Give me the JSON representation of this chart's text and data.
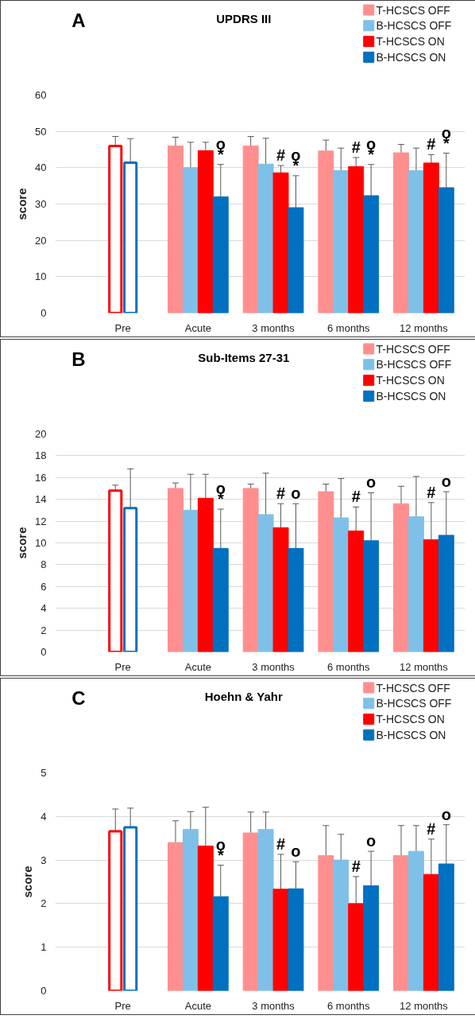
{
  "chart_data": [
    {
      "type": "bar",
      "title": "UPDRS III",
      "ylabel": "score",
      "categories": [
        "Pre",
        "Acute",
        "3 months",
        "6 months",
        "12 months"
      ],
      "ylim": [
        0,
        60
      ],
      "yticks": [
        0,
        10,
        20,
        30,
        40,
        50,
        60
      ],
      "grid": "y",
      "legend": "top right",
      "series": [
        {
          "color": "#ff0000",
          "values": [
            46.0,
            null,
            null,
            null,
            null
          ],
          "errors": [
            [
              46.0,
              48.6
            ],
            null,
            null,
            null,
            null
          ]
        },
        {
          "color": "#0070c0",
          "values": [
            41.4,
            null,
            null,
            null,
            null
          ],
          "errors": [
            [
              41.4,
              48.0
            ],
            null,
            null,
            null,
            null
          ]
        },
        {
          "name": "T-HCSCS OFF",
          "color": "#ff8f8f",
          "values": [
            null,
            46.0,
            46.0,
            44.6,
            44.1
          ],
          "errors": [
            null,
            [
              46.0,
              48.4
            ],
            [
              46.0,
              48.6
            ],
            [
              44.6,
              47.6
            ],
            [
              44.1,
              46.4
            ]
          ]
        },
        {
          "name": "B-HCSCS OFF",
          "color": "#7fc0e8",
          "values": [
            null,
            40.0,
            41.0,
            39.2,
            39.2
          ],
          "errors": [
            null,
            [
              40.0,
              47.0
            ],
            [
              41.0,
              48.1
            ],
            [
              39.2,
              45.4
            ],
            [
              39.2,
              45.4
            ]
          ]
        },
        {
          "name": "T-HCSCS ON",
          "color": "#ff0000",
          "values": [
            null,
            44.7,
            38.6,
            40.3,
            41.3
          ],
          "errors": [
            null,
            [
              44.7,
              47.0
            ],
            [
              38.6,
              40.6
            ],
            [
              40.3,
              42.8
            ],
            [
              41.3,
              43.6
            ]
          ]
        },
        {
          "name": "B-HCSCS ON",
          "color": "#0070c0",
          "values": [
            null,
            32.0,
            29.0,
            32.3,
            34.5
          ],
          "errors": [
            null,
            [
              32.0,
              40.9
            ],
            [
              29.0,
              37.8
            ],
            [
              32.3,
              40.9
            ],
            [
              34.5,
              44.0
            ]
          ]
        }
      ],
      "annotations": [
        "A",
        {
          "text": "*",
          "x": "Acute",
          "y": 32.0
        },
        {
          "text": "#",
          "x": "3 months",
          "y": 38.6
        },
        {
          "text": "*",
          "x": "3 months",
          "y": 29.0
        },
        {
          "text": "#",
          "x": "6 months",
          "y": 40.3
        },
        {
          "text": "*",
          "x": "6 months",
          "y": 32.3
        },
        {
          "text": "#",
          "x": "12 months",
          "y": 41.3
        },
        {
          "text": "*",
          "x": "12 months",
          "y": 34.5
        },
        "o",
        "o",
        "o",
        "o"
      ]
    },
    {
      "type": "bar",
      "title": "Sub-Items 27-31",
      "ylabel": "score",
      "categories": [
        "Pre",
        "Acute",
        "3 months",
        "6 months",
        "12 months"
      ],
      "ylim": [
        0,
        20
      ],
      "yticks": [
        0,
        2,
        4,
        6,
        8,
        10,
        12,
        14,
        16,
        18,
        20
      ],
      "grid": "y",
      "legend": "top right",
      "series": [
        {
          "color": "#ff0000",
          "values": [
            14.8,
            null,
            null,
            null,
            null
          ],
          "errors": [
            [
              14.8,
              15.3
            ],
            null,
            null,
            null,
            null
          ]
        },
        {
          "color": "#0070c0",
          "values": [
            13.2,
            null,
            null,
            null,
            null
          ],
          "errors": [
            [
              13.2,
              16.8
            ],
            null,
            null,
            null,
            null
          ]
        },
        {
          "name": "T-HCSCS OFF",
          "color": "#ff8f8f",
          "values": [
            null,
            15.0,
            15.0,
            14.7,
            13.6
          ],
          "errors": [
            null,
            [
              15.0,
              15.5
            ],
            [
              15.0,
              15.4
            ],
            [
              14.7,
              15.4
            ],
            [
              13.6,
              15.2
            ]
          ]
        },
        {
          "name": "B-HCSCS OFF",
          "color": "#7fc0e8",
          "values": [
            null,
            13.0,
            12.6,
            12.3,
            12.4
          ],
          "errors": [
            null,
            [
              13.0,
              16.3
            ],
            [
              12.6,
              16.4
            ],
            [
              12.3,
              15.9
            ],
            [
              12.4,
              16.1
            ]
          ]
        },
        {
          "name": "T-HCSCS ON",
          "color": "#ff0000",
          "values": [
            null,
            14.1,
            11.4,
            11.1,
            10.3
          ],
          "errors": [
            null,
            [
              14.1,
              16.3
            ],
            [
              11.4,
              13.6
            ],
            [
              11.1,
              13.3
            ],
            [
              10.3,
              13.7
            ]
          ]
        },
        {
          "name": "B-HCSCS ON",
          "color": "#0070c0",
          "values": [
            null,
            9.5,
            9.5,
            10.2,
            10.7
          ],
          "errors": [
            null,
            [
              9.5,
              13.1
            ],
            [
              9.5,
              13.6
            ],
            [
              10.2,
              14.6
            ],
            [
              10.7,
              14.7
            ]
          ]
        }
      ],
      "annotations": [
        "B",
        {
          "text": "*",
          "x": "Acute",
          "y": 9.5
        },
        {
          "text": "#",
          "x": "3 months",
          "y": 11.4
        },
        {
          "text": "#",
          "x": "6 months",
          "y": 11.1
        },
        {
          "text": "#",
          "x": "12 months",
          "y": 10.3
        },
        "o",
        "o",
        "o",
        "o"
      ]
    },
    {
      "type": "bar",
      "title": "Hoehn & Yahr",
      "ylabel": "score",
      "categories": [
        "Pre",
        "Acute",
        "3 months",
        "6 months",
        "12 months"
      ],
      "ylim": [
        0,
        5
      ],
      "yticks": [
        0,
        1,
        2,
        3,
        4,
        5
      ],
      "grid": "y",
      "legend": "top right",
      "series": [
        {
          "color": "#ff0000",
          "values": [
            3.66,
            null,
            null,
            null,
            null
          ],
          "errors": [
            [
              3.66,
              4.17
            ],
            null,
            null,
            null,
            null
          ]
        },
        {
          "color": "#0070c0",
          "values": [
            3.75,
            null,
            null,
            null,
            null
          ],
          "errors": [
            [
              3.75,
              4.19
            ],
            null,
            null,
            null,
            null
          ]
        },
        {
          "name": "T-HCSCS OFF",
          "color": "#ff8f8f",
          "values": [
            null,
            3.4,
            3.62,
            3.1,
            3.1
          ],
          "errors": [
            null,
            [
              3.4,
              3.9
            ],
            [
              3.62,
              4.1
            ],
            [
              3.1,
              3.79
            ],
            [
              3.1,
              3.79
            ]
          ]
        },
        {
          "name": "B-HCSCS OFF",
          "color": "#7fc0e8",
          "values": [
            null,
            3.7,
            3.7,
            3.0,
            3.2
          ],
          "errors": [
            null,
            [
              3.7,
              4.11
            ],
            [
              3.7,
              4.1
            ],
            [
              3.0,
              3.59
            ],
            [
              3.2,
              3.79
            ]
          ]
        },
        {
          "name": "T-HCSCS ON",
          "color": "#ff0000",
          "values": [
            null,
            3.32,
            2.33,
            2.0,
            2.67
          ],
          "errors": [
            null,
            [
              3.32,
              4.21
            ],
            [
              2.33,
              3.13
            ],
            [
              2.0,
              2.62
            ],
            [
              2.67,
              3.48
            ]
          ]
        },
        {
          "name": "B-HCSCS ON",
          "color": "#0070c0",
          "values": [
            null,
            2.16,
            2.34,
            2.41,
            2.91
          ],
          "errors": [
            null,
            [
              2.16,
              2.88
            ],
            [
              2.34,
              2.96
            ],
            [
              2.41,
              3.2
            ],
            [
              2.91,
              3.81
            ]
          ]
        }
      ],
      "annotations": [
        "C",
        {
          "text": "*",
          "x": "Acute",
          "y": 2.16
        },
        {
          "text": "#",
          "x": "3 months",
          "y": 2.33
        },
        {
          "text": "#",
          "x": "6 months",
          "y": 2.0
        },
        {
          "text": "#",
          "x": "12 months",
          "y": 2.67
        },
        "o",
        "o",
        "o",
        "o"
      ]
    }
  ]
}
